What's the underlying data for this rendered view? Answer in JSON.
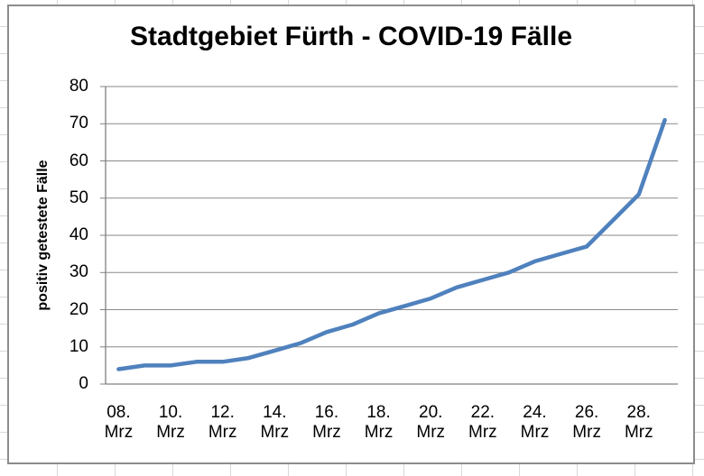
{
  "chart_data": {
    "type": "line",
    "title": "Stadtgebiet Fürth - COVID-19 Fälle",
    "xlabel": "",
    "ylabel": "positiv getestete Fälle",
    "ylim": [
      0,
      80
    ],
    "y_ticks": [
      0,
      10,
      20,
      30,
      40,
      50,
      60,
      70,
      80
    ],
    "grid": "horizontal",
    "legend": "none",
    "x": [
      "08. Mrz",
      "09. Mrz",
      "10. Mrz",
      "11. Mrz",
      "12. Mrz",
      "13. Mrz",
      "14. Mrz",
      "15. Mrz",
      "16. Mrz",
      "17. Mrz",
      "18. Mrz",
      "19. Mrz",
      "20. Mrz",
      "21. Mrz",
      "22. Mrz",
      "23. Mrz",
      "24. Mrz",
      "25. Mrz",
      "26. Mrz",
      "27. Mrz",
      "28. Mrz",
      "29. Mrz"
    ],
    "x_tick_labels": [
      {
        "line1": "08.",
        "line2": "Mrz"
      },
      {
        "line1": "10.",
        "line2": "Mrz"
      },
      {
        "line1": "12.",
        "line2": "Mrz"
      },
      {
        "line1": "14.",
        "line2": "Mrz"
      },
      {
        "line1": "16.",
        "line2": "Mrz"
      },
      {
        "line1": "18.",
        "line2": "Mrz"
      },
      {
        "line1": "20.",
        "line2": "Mrz"
      },
      {
        "line1": "22.",
        "line2": "Mrz"
      },
      {
        "line1": "24.",
        "line2": "Mrz"
      },
      {
        "line1": "26.",
        "line2": "Mrz"
      },
      {
        "line1": "28.",
        "line2": "Mrz"
      }
    ],
    "series": [
      {
        "name": "positiv getestete Fälle",
        "color": "#4F81BD",
        "values": [
          4,
          5,
          5,
          6,
          6,
          7,
          9,
          11,
          14,
          16,
          19,
          21,
          23,
          26,
          28,
          30,
          33,
          35,
          37,
          44,
          51,
          71
        ]
      }
    ],
    "colors": {
      "series_line": "#4F81BD",
      "gridline": "#8a8a8a",
      "axis_line": "#808080",
      "chart_border": "#8c8c8c",
      "text": "#000000"
    }
  }
}
